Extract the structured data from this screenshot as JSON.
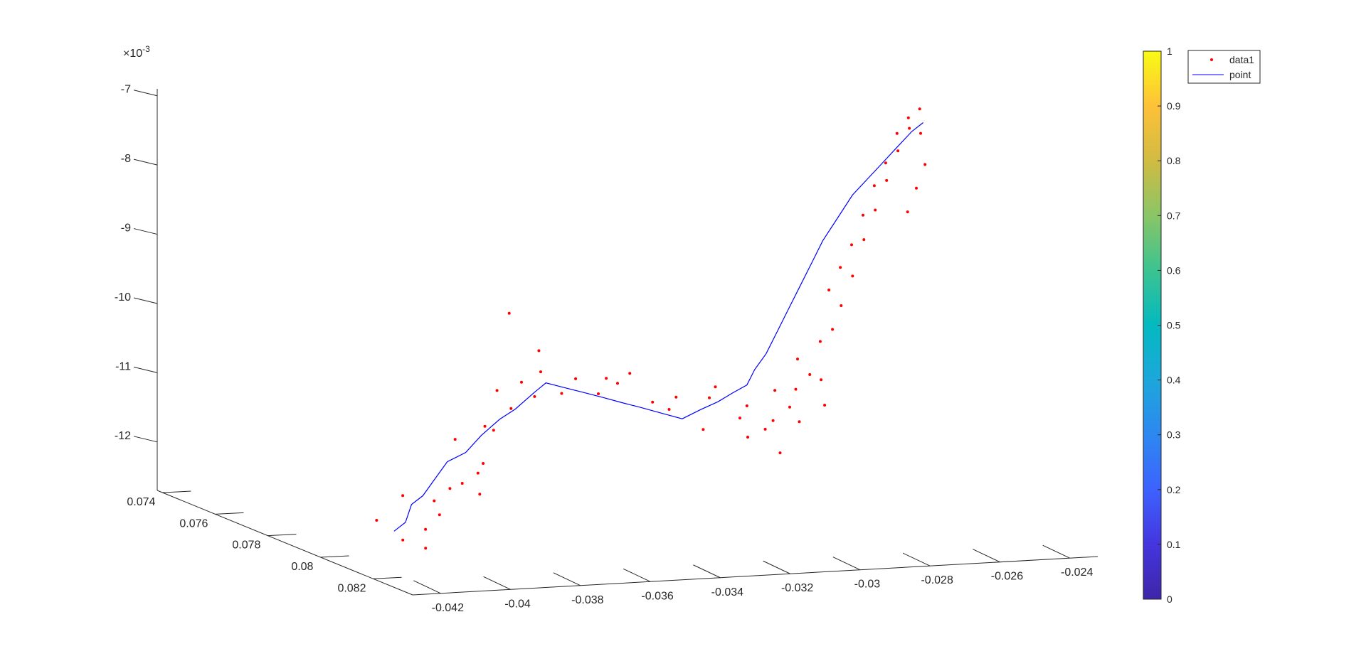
{
  "chart_data": {
    "type": "scatter",
    "view": "3d",
    "title": "",
    "xlabel": "",
    "ylabel": "",
    "zlabel": "",
    "x_ticks": [
      "-0.042",
      "-0.04",
      "-0.038",
      "-0.036",
      "-0.034",
      "-0.032",
      "-0.03",
      "-0.028",
      "-0.026",
      "-0.024"
    ],
    "y_ticks": [
      "0.074",
      "0.076",
      "0.078",
      "0.08",
      "0.082"
    ],
    "z_ticks": [
      "-7",
      "-8",
      "-9",
      "-10",
      "-11",
      "-12"
    ],
    "z_exponent": "×10",
    "z_exponent_power": "-3",
    "xlim": [
      -0.0428,
      -0.0232
    ],
    "ylim": [
      0.0738,
      0.0835
    ],
    "zlim": [
      -0.0127,
      -0.0069
    ],
    "colorbar": {
      "ticks": [
        "0",
        "0.1",
        "0.2",
        "0.3",
        "0.4",
        "0.5",
        "0.6",
        "0.7",
        "0.8",
        "0.9",
        "1"
      ],
      "range": [
        0,
        1
      ],
      "colormap": "parula",
      "colors": [
        "#3e26a8",
        "#4435de",
        "#3d62fe",
        "#2d88f0",
        "#1ca7db",
        "#04b9c0",
        "#3bc391",
        "#8ac566",
        "#d1bb42",
        "#fec139",
        "#f9fb14"
      ]
    },
    "legend": {
      "placement": "top-right-outside",
      "entries": [
        {
          "label": "data1",
          "marker": "dot",
          "color": "#ff0000"
        },
        {
          "label": "point",
          "marker": "line",
          "color": "#0000ff"
        }
      ]
    },
    "series": [
      {
        "name": "data1",
        "kind": "scatter",
        "color": "#ff0000",
        "points": [
          [
            -0.0421,
            0.0812,
            -0.012
          ],
          [
            -0.0418,
            0.0818,
            -0.0122
          ],
          [
            -0.0413,
            0.082,
            -0.0123
          ],
          [
            -0.041,
            0.0816,
            -0.0121
          ],
          [
            -0.0412,
            0.081,
            -0.0117
          ],
          [
            -0.0406,
            0.0816,
            -0.0119
          ],
          [
            -0.0403,
            0.081,
            -0.0118
          ],
          [
            -0.04,
            0.0812,
            -0.0116
          ],
          [
            -0.0398,
            0.0814,
            -0.0115
          ],
          [
            -0.0396,
            0.0818,
            -0.0116
          ],
          [
            -0.0392,
            0.0812,
            -0.0114
          ],
          [
            -0.0389,
            0.081,
            -0.0113
          ],
          [
            -0.0394,
            0.0806,
            -0.011
          ],
          [
            -0.0387,
            0.0808,
            -0.0108
          ],
          [
            -0.0383,
            0.0806,
            -0.0109
          ],
          [
            -0.0378,
            0.0806,
            -0.0106
          ],
          [
            -0.0379,
            0.0802,
            -0.0104
          ],
          [
            -0.0372,
            0.0802,
            -0.0103
          ],
          [
            -0.0369,
            0.0803,
            -0.0105
          ],
          [
            -0.0365,
            0.08,
            -0.0102
          ],
          [
            -0.0371,
            0.0796,
            -0.0094
          ],
          [
            -0.0361,
            0.0794,
            -0.01
          ],
          [
            -0.0356,
            0.0796,
            -0.0106
          ],
          [
            -0.0352,
            0.0796,
            -0.0104
          ],
          [
            -0.0347,
            0.0798,
            -0.0106
          ],
          [
            -0.0344,
            0.0797,
            -0.0104
          ],
          [
            -0.034,
            0.0796,
            -0.0105
          ],
          [
            -0.0335,
            0.0794,
            -0.0104
          ],
          [
            -0.033,
            0.0796,
            -0.0108
          ],
          [
            -0.0326,
            0.0797,
            -0.0109
          ],
          [
            -0.0321,
            0.0793,
            -0.0108
          ],
          [
            -0.0317,
            0.0798,
            -0.0112
          ],
          [
            -0.0313,
            0.0795,
            -0.0108
          ],
          [
            -0.0309,
            0.0792,
            -0.0107
          ],
          [
            -0.0305,
            0.0796,
            -0.0111
          ],
          [
            -0.0302,
            0.0795,
            -0.0114
          ],
          [
            -0.03,
            0.0792,
            -0.011
          ],
          [
            -0.0297,
            0.0795,
            -0.0113
          ],
          [
            -0.0295,
            0.0798,
            -0.0116
          ],
          [
            -0.0294,
            0.0794,
            -0.0112
          ],
          [
            -0.0292,
            0.0792,
            -0.0108
          ],
          [
            -0.029,
            0.0795,
            -0.011
          ],
          [
            -0.0288,
            0.0796,
            -0.0112
          ],
          [
            -0.0286,
            0.0792,
            -0.0108
          ],
          [
            -0.0284,
            0.079,
            -0.0104
          ],
          [
            -0.0282,
            0.0792,
            -0.0106
          ],
          [
            -0.028,
            0.0795,
            -0.011
          ],
          [
            -0.0278,
            0.0791,
            -0.0107
          ],
          [
            -0.0276,
            0.0788,
            -0.0102
          ],
          [
            -0.0274,
            0.079,
            -0.01
          ],
          [
            -0.0272,
            0.0786,
            -0.0095
          ],
          [
            -0.027,
            0.0788,
            -0.0097
          ],
          [
            -0.0268,
            0.0785,
            -0.0092
          ],
          [
            -0.0266,
            0.0787,
            -0.0093
          ],
          [
            -0.0264,
            0.0784,
            -0.0089
          ],
          [
            -0.0262,
            0.0786,
            -0.0088
          ],
          [
            -0.026,
            0.0783,
            -0.0085
          ],
          [
            -0.0258,
            0.0785,
            -0.0084
          ],
          [
            -0.0256,
            0.0782,
            -0.0081
          ],
          [
            -0.0254,
            0.0784,
            -0.008
          ],
          [
            -0.0252,
            0.0781,
            -0.0078
          ],
          [
            -0.025,
            0.0783,
            -0.0076
          ],
          [
            -0.0248,
            0.078,
            -0.0074
          ],
          [
            -0.0246,
            0.0782,
            -0.0073
          ],
          [
            -0.0244,
            0.0779,
            -0.0072
          ],
          [
            -0.0242,
            0.0781,
            -0.0074
          ],
          [
            -0.024,
            0.0778,
            -0.0071
          ],
          [
            -0.0243,
            0.0784,
            -0.0078
          ],
          [
            -0.0247,
            0.0786,
            -0.0081
          ],
          [
            -0.0251,
            0.0788,
            -0.0084
          ]
        ]
      },
      {
        "name": "point",
        "kind": "line",
        "color": "#0000ff",
        "points": [
          [
            -0.0419,
            0.0816,
            -0.0121
          ],
          [
            -0.0415,
            0.0815,
            -0.012
          ],
          [
            -0.0411,
            0.0812,
            -0.0118
          ],
          [
            -0.0407,
            0.0811,
            -0.0117
          ],
          [
            -0.0402,
            0.0809,
            -0.0115
          ],
          [
            -0.0397,
            0.0807,
            -0.0113
          ],
          [
            -0.0391,
            0.0806,
            -0.0112
          ],
          [
            -0.0385,
            0.0804,
            -0.011
          ],
          [
            -0.0379,
            0.0803,
            -0.0108
          ],
          [
            -0.0373,
            0.0801,
            -0.0107
          ],
          [
            -0.0367,
            0.08,
            -0.0105
          ],
          [
            -0.0362,
            0.0798,
            -0.0104
          ],
          [
            -0.0356,
            0.0797,
            -0.0105
          ],
          [
            -0.035,
            0.0796,
            -0.0106
          ],
          [
            -0.0344,
            0.0795,
            -0.0107
          ],
          [
            -0.0338,
            0.0795,
            -0.0108
          ],
          [
            -0.0332,
            0.0794,
            -0.0109
          ],
          [
            -0.0326,
            0.0794,
            -0.011
          ],
          [
            -0.032,
            0.0794,
            -0.0111
          ],
          [
            -0.0314,
            0.0793,
            -0.011
          ],
          [
            -0.0309,
            0.0793,
            -0.0109
          ],
          [
            -0.0304,
            0.0792,
            -0.0108
          ],
          [
            -0.03,
            0.0792,
            -0.0107
          ],
          [
            -0.0297,
            0.0791,
            -0.0105
          ],
          [
            -0.0293,
            0.079,
            -0.0103
          ],
          [
            -0.0289,
            0.0789,
            -0.01
          ],
          [
            -0.0285,
            0.0788,
            -0.0097
          ],
          [
            -0.0281,
            0.0787,
            -0.0094
          ],
          [
            -0.0277,
            0.0786,
            -0.0091
          ],
          [
            -0.0273,
            0.0785,
            -0.0088
          ],
          [
            -0.0268,
            0.0784,
            -0.0085
          ],
          [
            -0.0263,
            0.0783,
            -0.0082
          ],
          [
            -0.0258,
            0.0782,
            -0.008
          ],
          [
            -0.0253,
            0.0781,
            -0.0078
          ],
          [
            -0.0248,
            0.078,
            -0.0076
          ],
          [
            -0.0243,
            0.0779,
            -0.0074
          ],
          [
            -0.0239,
            0.0778,
            -0.0073
          ]
        ]
      }
    ]
  }
}
